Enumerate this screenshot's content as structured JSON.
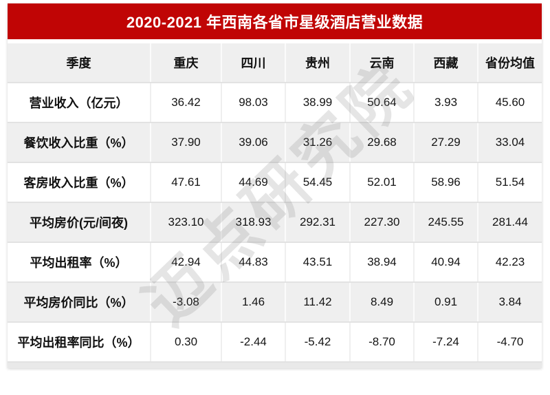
{
  "title": "2020-2021 年西南各省市星级酒店营业数据",
  "watermark": {
    "text": "迈点研究院"
  },
  "colors": {
    "title_bar_red": "#C00505",
    "row_alt_gray": "#EFEFEF",
    "row_white": "#FFFFFF",
    "divider_gray": "#E2E2E2",
    "text_black": "#141414",
    "watermark_gray": "#D5D5D5"
  },
  "chart_data": {
    "type": "table",
    "title": "2020-2021 年西南各省市星级酒店营业数据",
    "columns": [
      "季度",
      "重庆",
      "四川",
      "贵州",
      "云南",
      "西藏",
      "省份均值"
    ],
    "rows": [
      {
        "label": "营业收入（亿元）",
        "values": [
          "36.42",
          "98.03",
          "38.99",
          "50.64",
          "3.93",
          "45.60"
        ]
      },
      {
        "label": "餐饮收入比重（%）",
        "values": [
          "37.90",
          "39.06",
          "31.26",
          "29.68",
          "27.29",
          "33.04"
        ]
      },
      {
        "label": "客房收入比重（%）",
        "values": [
          "47.61",
          "44.69",
          "54.45",
          "52.01",
          "58.96",
          "51.54"
        ]
      },
      {
        "label": "平均房价(元/间夜)",
        "values": [
          "323.10",
          "318.93",
          "292.31",
          "227.30",
          "245.55",
          "281.44"
        ]
      },
      {
        "label": "平均出租率（%）",
        "values": [
          "42.94",
          "44.83",
          "43.51",
          "38.94",
          "40.94",
          "42.23"
        ]
      },
      {
        "label": "平均房价同比（%）",
        "values": [
          "-3.08",
          "1.46",
          "11.42",
          "8.49",
          "0.91",
          "3.84"
        ]
      },
      {
        "label": "平均出租率同比（%）",
        "values": [
          "0.30",
          "-2.44",
          "-5.42",
          "-8.70",
          "-7.24",
          "-4.70"
        ]
      }
    ]
  }
}
